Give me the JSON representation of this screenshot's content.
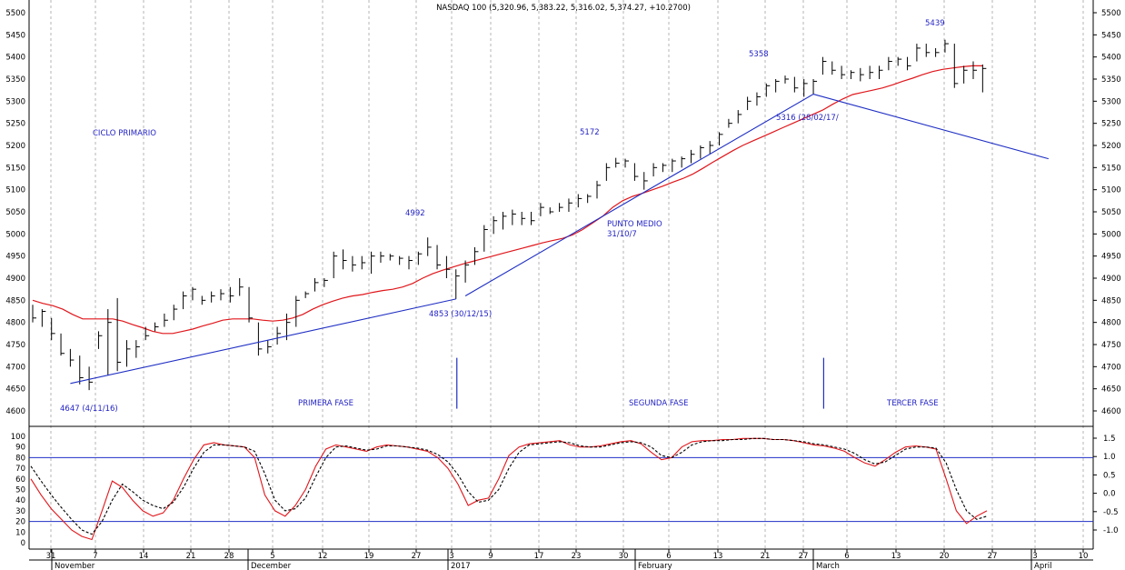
{
  "chart_data": [
    {
      "type": "ohlc",
      "title": "NASDAQ 100 (5,320.96, 5,383.22, 5,316.02, 5,374.27, +10.2700)",
      "xlabel": "",
      "ylabel": "",
      "ylim": [
        4560,
        5510
      ],
      "yticks": [
        "5500",
        "5450",
        "5400",
        "5350",
        "5300",
        "5250",
        "5200",
        "5150",
        "5100",
        "5050",
        "5000",
        "4950",
        "4900",
        "4850",
        "4800",
        "4750",
        "4700",
        "4650",
        "4600"
      ],
      "x_day_ticks": [
        "31",
        "7",
        "14",
        "21",
        "28",
        "5",
        "12",
        "19",
        "27",
        "3",
        "9",
        "17",
        "23",
        "30",
        "6",
        "13",
        "21",
        "27",
        "6",
        "13",
        "20",
        "27",
        "3",
        "10"
      ],
      "x_month_labels": [
        "November",
        "December",
        "2017",
        "February",
        "March",
        "April"
      ],
      "grid": true,
      "series": [
        {
          "kind": "bars",
          "values": [
            [
              4800,
              4840,
              4810
            ],
            [
              4790,
              4830,
              4825
            ],
            [
              4760,
              4810,
              4775
            ],
            [
              4725,
              4775,
              4730
            ],
            [
              4700,
              4740,
              4715
            ],
            [
              4660,
              4725,
              4675
            ],
            [
              4647,
              4700,
              4665
            ],
            [
              4740,
              4780,
              4770
            ],
            [
              4680,
              4830,
              4800
            ],
            [
              4690,
              4855,
              4710
            ],
            [
              4700,
              4760,
              4740
            ],
            [
              4720,
              4760,
              4745
            ],
            [
              4760,
              4790,
              4770
            ],
            [
              4780,
              4800,
              4790
            ],
            [
              4790,
              4820,
              4805
            ],
            [
              4805,
              4840,
              4830
            ],
            [
              4830,
              4870,
              4860
            ],
            [
              4850,
              4880,
              4875
            ],
            [
              4840,
              4860,
              4850
            ],
            [
              4845,
              4870,
              4860
            ],
            [
              4850,
              4875,
              4865
            ],
            [
              4845,
              4880,
              4860
            ],
            [
              4860,
              4900,
              4880
            ],
            [
              4800,
              4880,
              4810
            ],
            [
              4725,
              4800,
              4740
            ],
            [
              4730,
              4760,
              4745
            ],
            [
              4750,
              4790,
              4775
            ],
            [
              4760,
              4820,
              4800
            ],
            [
              4790,
              4860,
              4850
            ],
            [
              4855,
              4870,
              4865
            ],
            [
              4870,
              4900,
              4890
            ],
            [
              4880,
              4900,
              4895
            ],
            [
              4900,
              4960,
              4950
            ],
            [
              4920,
              4965,
              4940
            ],
            [
              4915,
              4950,
              4930
            ],
            [
              4920,
              4950,
              4935
            ],
            [
              4910,
              4960,
              4950
            ],
            [
              4935,
              4960,
              4950
            ],
            [
              4940,
              4955,
              4950
            ],
            [
              4930,
              4950,
              4945
            ],
            [
              4920,
              4950,
              4940
            ],
            [
              4930,
              4960,
              4955
            ],
            [
              4950,
              4992,
              4970
            ],
            [
              4920,
              4975,
              4930
            ],
            [
              4900,
              4950,
              4920
            ],
            [
              4853,
              4920,
              4905
            ],
            [
              4890,
              4940,
              4930
            ],
            [
              4930,
              4970,
              4960
            ],
            [
              4960,
              5020,
              5010
            ],
            [
              5000,
              5040,
              5030
            ],
            [
              5010,
              5050,
              5040
            ],
            [
              5020,
              5055,
              5045
            ],
            [
              5020,
              5050,
              5035
            ],
            [
              5020,
              5050,
              5030
            ],
            [
              5040,
              5070,
              5060
            ],
            [
              5045,
              5060,
              5050
            ],
            [
              5050,
              5070,
              5060
            ],
            [
              5050,
              5080,
              5070
            ],
            [
              5060,
              5090,
              5080
            ],
            [
              5070,
              5090,
              5085
            ],
            [
              5080,
              5120,
              5110
            ],
            [
              5120,
              5160,
              5150
            ],
            [
              5150,
              5172,
              5160
            ],
            [
              5150,
              5170,
              5165
            ],
            [
              5120,
              5160,
              5130
            ],
            [
              5100,
              5140,
              5120
            ],
            [
              5130,
              5160,
              5150
            ],
            [
              5140,
              5160,
              5155
            ],
            [
              5140,
              5170,
              5165
            ],
            [
              5150,
              5175,
              5170
            ],
            [
              5160,
              5190,
              5180
            ],
            [
              5170,
              5200,
              5195
            ],
            [
              5180,
              5210,
              5200
            ],
            [
              5200,
              5230,
              5225
            ],
            [
              5240,
              5260,
              5250
            ],
            [
              5250,
              5280,
              5270
            ],
            [
              5280,
              5310,
              5300
            ],
            [
              5290,
              5320,
              5310
            ],
            [
              5310,
              5340,
              5335
            ],
            [
              5320,
              5350,
              5345
            ],
            [
              5340,
              5358,
              5350
            ],
            [
              5320,
              5355,
              5330
            ],
            [
              5310,
              5350,
              5340
            ],
            [
              5316,
              5350,
              5345
            ],
            [
              5360,
              5400,
              5390
            ],
            [
              5360,
              5390,
              5370
            ],
            [
              5350,
              5380,
              5360
            ],
            [
              5350,
              5370,
              5365
            ],
            [
              5345,
              5375,
              5360
            ],
            [
              5350,
              5380,
              5365
            ],
            [
              5350,
              5380,
              5370
            ],
            [
              5370,
              5400,
              5390
            ],
            [
              5380,
              5400,
              5395
            ],
            [
              5370,
              5400,
              5380
            ],
            [
              5390,
              5430,
              5420
            ],
            [
              5400,
              5430,
              5410
            ],
            [
              5400,
              5420,
              5410
            ],
            [
              5410,
              5439,
              5430
            ],
            [
              5330,
              5430,
              5340
            ],
            [
              5340,
              5380,
              5370
            ],
            [
              5350,
              5390,
              5370
            ],
            [
              5320,
              5383,
              5374
            ]
          ]
        },
        {
          "name": "",
          "kind": "moving-average",
          "color": "#e0161b",
          "values": [
            4850,
            4843,
            4838,
            4830,
            4818,
            4808,
            4808,
            4808,
            4808,
            4803,
            4795,
            4788,
            4780,
            4775,
            4775,
            4780,
            4785,
            4792,
            4798,
            4805,
            4808,
            4808,
            4808,
            4805,
            4803,
            4805,
            4810,
            4818,
            4830,
            4840,
            4848,
            4855,
            4860,
            4863,
            4868,
            4872,
            4875,
            4880,
            4888,
            4900,
            4910,
            4918,
            4925,
            4932,
            4938,
            4944,
            4950,
            4956,
            4962,
            4968,
            4974,
            4980,
            4985,
            4990,
            4998,
            5010,
            5025,
            5040,
            5060,
            5075,
            5085,
            5092,
            5100,
            5108,
            5117,
            5125,
            5135,
            5148,
            5162,
            5175,
            5188,
            5200,
            5210,
            5220,
            5230,
            5240,
            5250,
            5260,
            5270,
            5280,
            5293,
            5305,
            5315,
            5320,
            5325,
            5330,
            5337,
            5345,
            5352,
            5360,
            5367,
            5372,
            5375,
            5378,
            5380,
            5380
          ]
        }
      ],
      "annotations": [
        "CICLO PRIMARIO",
        "4647 (4/11/16)",
        "PRIMERA FASE",
        "4992",
        "4853 (30/12/15)",
        "5172",
        "PUNTO MEDIO",
        "31/10/7",
        "SEGUNDA FASE",
        "5358",
        "5316 (28/02/17/",
        "5439",
        "TERCER FASE"
      ],
      "trendlines": [
        {
          "from": [
            4,
            4662
          ],
          "to": [
            45,
            4853
          ],
          "color": "#1f2fc4"
        },
        {
          "from": [
            46,
            4860
          ],
          "to": [
            83,
            5316
          ],
          "color": "#1f2fc4"
        },
        {
          "from": [
            83,
            5316
          ],
          "to": [
            108,
            5170
          ],
          "color": "#1f2fc4"
        }
      ],
      "phase_markers": [
        45,
        84
      ]
    },
    {
      "type": "line",
      "title": "",
      "xlabel": "",
      "ylabel": "",
      "ylim_left": [
        0,
        100
      ],
      "yticks_left": [
        "100",
        "90",
        "80",
        "70",
        "60",
        "50",
        "40",
        "30",
        "20",
        "10",
        "0"
      ],
      "yticks_right": [
        "1.5",
        "1.0",
        "0.5",
        "0.0",
        "-0.5",
        "-1.0"
      ],
      "hlines": [
        80,
        20
      ],
      "series": [
        {
          "name": "",
          "color": "#e0161b",
          "values": [
            60,
            45,
            32,
            22,
            12,
            6,
            3,
            30,
            58,
            52,
            40,
            30,
            25,
            28,
            40,
            60,
            78,
            92,
            94,
            92,
            91,
            90,
            80,
            45,
            30,
            25,
            35,
            50,
            72,
            88,
            92,
            90,
            88,
            86,
            90,
            92,
            91,
            90,
            88,
            86,
            80,
            70,
            55,
            35,
            40,
            42,
            60,
            82,
            90,
            93,
            94,
            95,
            96,
            92,
            90,
            90,
            91,
            93,
            95,
            96,
            93,
            85,
            78,
            80,
            90,
            95,
            96,
            96,
            97,
            97,
            98,
            98,
            98,
            97,
            97,
            96,
            94,
            92,
            91,
            89,
            86,
            80,
            75,
            72,
            78,
            85,
            90,
            91,
            90,
            88,
            60,
            30,
            18,
            25,
            30
          ]
        },
        {
          "name": "",
          "color": "#000000",
          "dashed": true,
          "values": [
            72,
            58,
            45,
            33,
            22,
            12,
            8,
            20,
            40,
            55,
            48,
            40,
            35,
            32,
            38,
            52,
            70,
            85,
            92,
            92,
            91,
            90,
            86,
            65,
            40,
            30,
            32,
            42,
            62,
            80,
            90,
            91,
            89,
            87,
            88,
            91,
            91,
            90,
            89,
            87,
            83,
            76,
            64,
            48,
            38,
            40,
            50,
            70,
            85,
            92,
            93,
            94,
            95,
            94,
            91,
            90,
            90,
            92,
            94,
            95,
            94,
            90,
            82,
            80,
            85,
            92,
            95,
            96,
            96,
            97,
            97,
            98,
            98,
            97,
            97,
            96,
            95,
            93,
            92,
            90,
            88,
            84,
            78,
            74,
            76,
            82,
            88,
            90,
            90,
            89,
            75,
            50,
            30,
            22,
            25
          ]
        }
      ]
    }
  ]
}
